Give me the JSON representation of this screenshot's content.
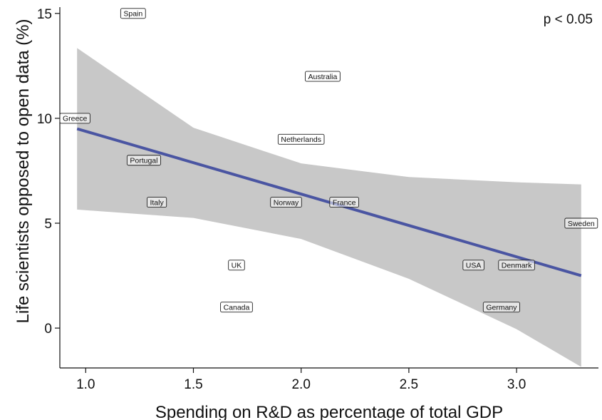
{
  "chart_data": {
    "type": "scatter",
    "xlabel": "Spending on R&D as percentage of total GDP",
    "ylabel": "Life scientists opposed to open data (%)",
    "xlim": [
      0.88,
      3.38
    ],
    "ylim": [
      -1.9,
      15.3
    ],
    "xticks": [
      1.0,
      1.5,
      2.0,
      2.5,
      3.0
    ],
    "xtick_labels": [
      "1.0",
      "1.5",
      "2.0",
      "2.5",
      "3.0"
    ],
    "yticks": [
      0,
      5,
      10,
      15
    ],
    "ytick_labels": [
      "0",
      "5",
      "10",
      "15"
    ],
    "annotation": "p < 0.05",
    "grid": false,
    "points": [
      {
        "label": "Spain",
        "x": 1.22,
        "y": 15
      },
      {
        "label": "Australia",
        "x": 2.1,
        "y": 12
      },
      {
        "label": "Greece",
        "x": 0.95,
        "y": 10
      },
      {
        "label": "Netherlands",
        "x": 2.0,
        "y": 9
      },
      {
        "label": "Portugal",
        "x": 1.27,
        "y": 8
      },
      {
        "label": "Italy",
        "x": 1.33,
        "y": 6
      },
      {
        "label": "Norway",
        "x": 1.93,
        "y": 6
      },
      {
        "label": "France",
        "x": 2.2,
        "y": 6
      },
      {
        "label": "Sweden",
        "x": 3.3,
        "y": 5
      },
      {
        "label": "UK",
        "x": 1.7,
        "y": 3
      },
      {
        "label": "USA",
        "x": 2.8,
        "y": 3
      },
      {
        "label": "Denmark",
        "x": 3.0,
        "y": 3
      },
      {
        "label": "Canada",
        "x": 1.7,
        "y": 1
      },
      {
        "label": "Germany",
        "x": 2.93,
        "y": 1
      }
    ],
    "fit_line": {
      "x": [
        0.96,
        3.3
      ],
      "y": [
        9.5,
        2.5
      ],
      "color": "#4a55a2"
    },
    "confidence_band": {
      "color": "#c8c8c8",
      "x": [
        0.96,
        1.5,
        2.0,
        2.5,
        3.0,
        3.3
      ],
      "upper": [
        13.35,
        9.55,
        7.85,
        7.2,
        6.95,
        6.85
      ],
      "lower": [
        5.65,
        5.25,
        4.25,
        2.35,
        -0.05,
        -1.85
      ]
    }
  }
}
